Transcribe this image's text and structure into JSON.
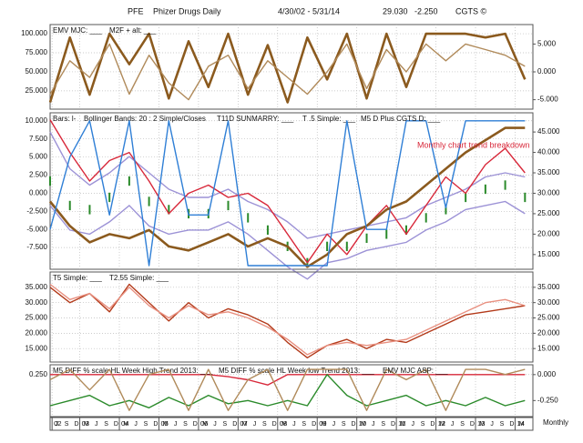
{
  "header": {
    "symbol": "PFE",
    "name": "Phizer Drugs Daily",
    "range": "4/30/02 - 5/31/14",
    "last": "29.030",
    "change": "-2.250",
    "brand": "CGTS ©",
    "x_label": "Monthly"
  },
  "chart_data": [
    {
      "type": "line",
      "x": [
        2002.25,
        2002.75,
        2003.25,
        2003.75,
        2004.25,
        2004.75,
        2005.25,
        2005.75,
        2006.25,
        2006.75,
        2007.25,
        2007.75,
        2008.25,
        2008.75,
        2009.25,
        2009.75,
        2010.25,
        2010.75,
        2011.25,
        2011.75,
        2012.25,
        2012.75,
        2013.25,
        2013.75,
        2014.25
      ],
      "xlim": [
        2002.25,
        2014.45
      ],
      "ylim": [
        1,
        112
      ],
      "yticks": [
        {
          "value": 100,
          "label": "100.000"
        },
        {
          "value": 75,
          "label": "75.000"
        },
        {
          "value": 50,
          "label": "50.000"
        },
        {
          "value": 25,
          "label": "25.000"
        }
      ],
      "y2lim": [
        -6.7,
        8.5
      ],
      "y2ticks": [
        {
          "value": 5,
          "label": "5.000"
        },
        {
          "value": 0,
          "label": "0.000"
        },
        {
          "value": -5,
          "label": "-5.000"
        }
      ],
      "series": [
        {
          "name": "EMV MJC: ___",
          "color": "#8b5a1e",
          "values": [
            10,
            95,
            20,
            100,
            60,
            100,
            15,
            90,
            30,
            100,
            20,
            85,
            10,
            95,
            40,
            100,
            15,
            100,
            30,
            100,
            100,
            100,
            95,
            100,
            40
          ]
        },
        {
          "name": "M2F + alt: ___",
          "color": "#b08a5a",
          "axis": "y2",
          "values": [
            -4,
            2,
            -1,
            5,
            -4,
            3,
            -2,
            -5,
            1,
            3,
            -3,
            2,
            -1,
            -4,
            0,
            5,
            -3,
            4,
            0,
            5,
            2,
            5,
            4,
            3,
            1
          ]
        }
      ]
    },
    {
      "type": "line",
      "x": [
        2002.25,
        2002.75,
        2003.25,
        2003.75,
        2004.25,
        2004.75,
        2005.25,
        2005.75,
        2006.25,
        2006.75,
        2007.25,
        2007.75,
        2008.25,
        2008.75,
        2009.25,
        2009.75,
        2010.25,
        2010.75,
        2011.25,
        2011.75,
        2012.25,
        2012.75,
        2013.25,
        2013.75,
        2014.25
      ],
      "xlim": [
        2002.25,
        2014.45
      ],
      "ylim": [
        -10.5,
        11.1
      ],
      "yticks": [
        {
          "value": 10,
          "label": "10.000"
        },
        {
          "value": 7.5,
          "label": "7.500"
        },
        {
          "value": 5,
          "label": "5.000"
        },
        {
          "value": 2.5,
          "label": "2.500"
        },
        {
          "value": 0,
          "label": "0.000"
        },
        {
          "value": -2.5,
          "label": "-2.500"
        },
        {
          "value": -5,
          "label": "-5.000"
        },
        {
          "value": -7.5,
          "label": "-7.500"
        }
      ],
      "y2lim": [
        11.4,
        49.7
      ],
      "y2ticks": [
        {
          "value": 45,
          "label": "45.000"
        },
        {
          "value": 40,
          "label": "40.000"
        },
        {
          "value": 35,
          "label": "35.000"
        },
        {
          "value": 30,
          "label": "30.000"
        },
        {
          "value": 25,
          "label": "25.000"
        },
        {
          "value": 20,
          "label": "20.000"
        },
        {
          "value": 15,
          "label": "15.000"
        }
      ],
      "annotation": "Monthly chart trend breakdown",
      "series": [
        {
          "name": "Bars: l-",
          "type": "bars",
          "color": "#2a8a2a",
          "axis": "y2",
          "values": [
            33,
            27,
            26,
            29,
            33,
            28,
            26,
            25,
            25,
            27,
            24,
            21,
            17,
            13,
            17,
            17,
            19,
            20,
            21,
            24,
            26,
            29,
            31,
            32,
            29
          ]
        },
        {
          "name": "Bollinger Bands: 20 : 2 Simple/Closes",
          "type": "band",
          "color": "#9c92d6",
          "axis": "y2",
          "values": [
            45,
            36,
            32,
            35,
            39,
            35,
            31,
            29,
            29,
            31,
            28,
            26,
            23,
            19,
            20,
            21,
            22,
            23,
            24,
            27,
            29,
            31,
            34,
            35,
            34
          ],
          "lower": [
            27,
            21,
            20,
            23,
            27,
            22,
            20,
            21,
            21,
            23,
            20,
            16,
            12,
            9,
            13,
            14,
            16,
            17,
            18,
            21,
            23,
            26,
            27,
            28,
            25
          ]
        },
        {
          "name": "T11D SUNMARRY: ___",
          "color": "#d8283a",
          "axis": "y2",
          "values": [
            48,
            40,
            33,
            38,
            40,
            33,
            25,
            30,
            32,
            29,
            30,
            27,
            20,
            13,
            20,
            15,
            22,
            27,
            20,
            27,
            34,
            30,
            37,
            41,
            35
          ]
        },
        {
          "name": "T .5 Simple: ___",
          "color": "#8b5a1e",
          "axis": "y2",
          "values": [
            28,
            22,
            18,
            20,
            19,
            21,
            17,
            16,
            18,
            20,
            17,
            19,
            17,
            12,
            15,
            20,
            22,
            26,
            28,
            32,
            36,
            40,
            43,
            46,
            46
          ]
        },
        {
          "name": "M5 D Plus CGTS D: ___",
          "color": "#2f7fd6",
          "values": [
            -5,
            5,
            10,
            -3,
            10,
            -10,
            10,
            -3,
            -3,
            10,
            -10,
            -10,
            -10,
            -10,
            -10,
            10,
            -5,
            -5,
            10,
            10,
            -2,
            10,
            10,
            10,
            10
          ]
        }
      ]
    },
    {
      "type": "line",
      "x": [
        2002.25,
        2002.75,
        2003.25,
        2003.75,
        2004.25,
        2004.75,
        2005.25,
        2005.75,
        2006.25,
        2006.75,
        2007.25,
        2007.75,
        2008.25,
        2008.75,
        2009.25,
        2009.75,
        2010.25,
        2010.75,
        2011.25,
        2011.75,
        2012.25,
        2012.75,
        2013.25,
        2013.75,
        2014.25
      ],
      "xlim": [
        2002.25,
        2014.45
      ],
      "ylim": [
        10.6,
        40
      ],
      "yticks": [
        {
          "value": 35,
          "label": "35.000"
        },
        {
          "value": 30,
          "label": "30.000"
        },
        {
          "value": 25,
          "label": "25.000"
        },
        {
          "value": 20,
          "label": "20.000"
        },
        {
          "value": 15,
          "label": "15.000"
        }
      ],
      "y2lim": [
        10.6,
        40
      ],
      "y2ticks": [
        {
          "value": 35,
          "label": "35.000"
        },
        {
          "value": 30,
          "label": "30.000"
        },
        {
          "value": 25,
          "label": "25.000"
        },
        {
          "value": 20,
          "label": "20.000"
        },
        {
          "value": 15,
          "label": "15.000"
        }
      ],
      "series": [
        {
          "name": "T5 Simple: ___",
          "color": "#b33a1a",
          "values": [
            35,
            30,
            33,
            27,
            36,
            30,
            24,
            30,
            25,
            28,
            26,
            23,
            17,
            12,
            16,
            18,
            15,
            18,
            17,
            20,
            23,
            26,
            27,
            28,
            29
          ]
        },
        {
          "name": "T2.55 Simple: ___",
          "color": "#e89080",
          "values": [
            36,
            31,
            33,
            28,
            35,
            29,
            25,
            29,
            26,
            27,
            25,
            22,
            18,
            13,
            16,
            17,
            16,
            17,
            18,
            21,
            24,
            27,
            30,
            31,
            29
          ]
        }
      ]
    },
    {
      "type": "line",
      "x": [
        2002.25,
        2002.75,
        2003.25,
        2003.75,
        2004.25,
        2004.75,
        2005.25,
        2005.75,
        2006.25,
        2006.75,
        2007.25,
        2007.75,
        2008.25,
        2008.75,
        2009.25,
        2009.75,
        2010.25,
        2010.75,
        2011.25,
        2011.75,
        2012.25,
        2012.75,
        2013.25,
        2013.75,
        2014.25
      ],
      "xlim": [
        2002.25,
        2014.45
      ],
      "xticks": [
        {
          "value": 2002.3,
          "label": "02"
        },
        {
          "value": 2003,
          "label": "03"
        },
        {
          "value": 2004,
          "label": "04"
        },
        {
          "value": 2005,
          "label": "05"
        },
        {
          "value": 2006,
          "label": "06"
        },
        {
          "value": 2007,
          "label": "07"
        },
        {
          "value": 2008,
          "label": "08"
        },
        {
          "value": 2009,
          "label": "09"
        },
        {
          "value": 2010,
          "label": "10"
        },
        {
          "value": 2011,
          "label": "11"
        },
        {
          "value": 2012,
          "label": "12"
        },
        {
          "value": 2013,
          "label": "13"
        },
        {
          "value": 2014,
          "label": "14"
        }
      ],
      "xminorticks": [
        {
          "value": 2002.417,
          "label": "J"
        },
        {
          "value": 2002.667,
          "label": "S"
        },
        {
          "value": 2002.917,
          "label": "D"
        },
        {
          "value": 2003.167,
          "label": "M"
        },
        {
          "value": 2003.417,
          "label": "J"
        },
        {
          "value": 2003.667,
          "label": "S"
        },
        {
          "value": 2003.917,
          "label": "D"
        },
        {
          "value": 2004.167,
          "label": "M"
        },
        {
          "value": 2004.417,
          "label": "J"
        },
        {
          "value": 2004.667,
          "label": "S"
        },
        {
          "value": 2004.917,
          "label": "D"
        },
        {
          "value": 2005.167,
          "label": "M"
        },
        {
          "value": 2005.417,
          "label": "J"
        },
        {
          "value": 2005.667,
          "label": "S"
        },
        {
          "value": 2005.917,
          "label": "D"
        },
        {
          "value": 2006.167,
          "label": "M"
        },
        {
          "value": 2006.417,
          "label": "J"
        },
        {
          "value": 2006.667,
          "label": "S"
        },
        {
          "value": 2006.917,
          "label": "D"
        },
        {
          "value": 2007.167,
          "label": "M"
        },
        {
          "value": 2007.417,
          "label": "J"
        },
        {
          "value": 2007.667,
          "label": "S"
        },
        {
          "value": 2007.917,
          "label": "D"
        },
        {
          "value": 2008.167,
          "label": "M"
        },
        {
          "value": 2008.417,
          "label": "J"
        },
        {
          "value": 2008.667,
          "label": "S"
        },
        {
          "value": 2008.917,
          "label": "D"
        },
        {
          "value": 2009.167,
          "label": "M"
        },
        {
          "value": 2009.417,
          "label": "J"
        },
        {
          "value": 2009.667,
          "label": "S"
        },
        {
          "value": 2009.917,
          "label": "D"
        },
        {
          "value": 2010.167,
          "label": "M"
        },
        {
          "value": 2010.417,
          "label": "J"
        },
        {
          "value": 2010.667,
          "label": "S"
        },
        {
          "value": 2010.917,
          "label": "D"
        },
        {
          "value": 2011.167,
          "label": "M"
        },
        {
          "value": 2011.417,
          "label": "J"
        },
        {
          "value": 2011.667,
          "label": "S"
        },
        {
          "value": 2011.917,
          "label": "D"
        },
        {
          "value": 2012.167,
          "label": "M"
        },
        {
          "value": 2012.417,
          "label": "J"
        },
        {
          "value": 2012.667,
          "label": "S"
        },
        {
          "value": 2012.917,
          "label": "D"
        },
        {
          "value": 2013.167,
          "label": "M"
        },
        {
          "value": 2013.417,
          "label": "J"
        },
        {
          "value": 2013.667,
          "label": "S"
        },
        {
          "value": 2013.917,
          "label": "D"
        },
        {
          "value": 2014.167,
          "label": "M"
        }
      ],
      "ylim": [
        -0.16,
        0.345
      ],
      "yticks": [
        {
          "value": 0.25,
          "label": "0.250"
        }
      ],
      "y2lim": [
        -0.405,
        0.095
      ],
      "y2ticks": [
        {
          "value": 0,
          "label": "0.000"
        },
        {
          "value": -0.25,
          "label": "-0.250"
        }
      ],
      "series": [
        {
          "name": "M5 DIFF % scale HL Week High Trend 2013: ___",
          "color": "#d8283a",
          "axis": "y2",
          "values": [
            0,
            0,
            0,
            0,
            0,
            0,
            0,
            0,
            0,
            -0.02,
            -0.05,
            -0.1,
            0,
            0,
            0,
            0,
            0,
            0,
            0,
            0,
            0,
            0,
            0,
            0,
            0
          ]
        },
        {
          "name": "M5 DIFF % scale HL Week low Trend 2013: ___",
          "color": "#2a8a2a",
          "axis": "y2",
          "values": [
            -0.3,
            -0.25,
            -0.2,
            -0.3,
            -0.25,
            -0.32,
            -0.22,
            -0.3,
            -0.2,
            -0.28,
            -0.25,
            -0.3,
            -0.25,
            -0.3,
            0,
            -0.2,
            -0.3,
            -0.25,
            -0.2,
            -0.3,
            -0.25,
            -0.3,
            -0.22,
            -0.3,
            -0.25
          ]
        },
        {
          "name": "EMV MJC ASP: ___",
          "color": "#b08a5a",
          "values": [
            0.2,
            0.3,
            0.1,
            0.3,
            -0.1,
            0.25,
            0.3,
            -0.1,
            0.3,
            -0.1,
            0.2,
            0.3,
            -0.1,
            0.3,
            0.3,
            0.3,
            -0.1,
            0.3,
            0.2,
            0.3,
            -0.1,
            0.3,
            0.3,
            0.25,
            0.3
          ]
        }
      ]
    }
  ]
}
